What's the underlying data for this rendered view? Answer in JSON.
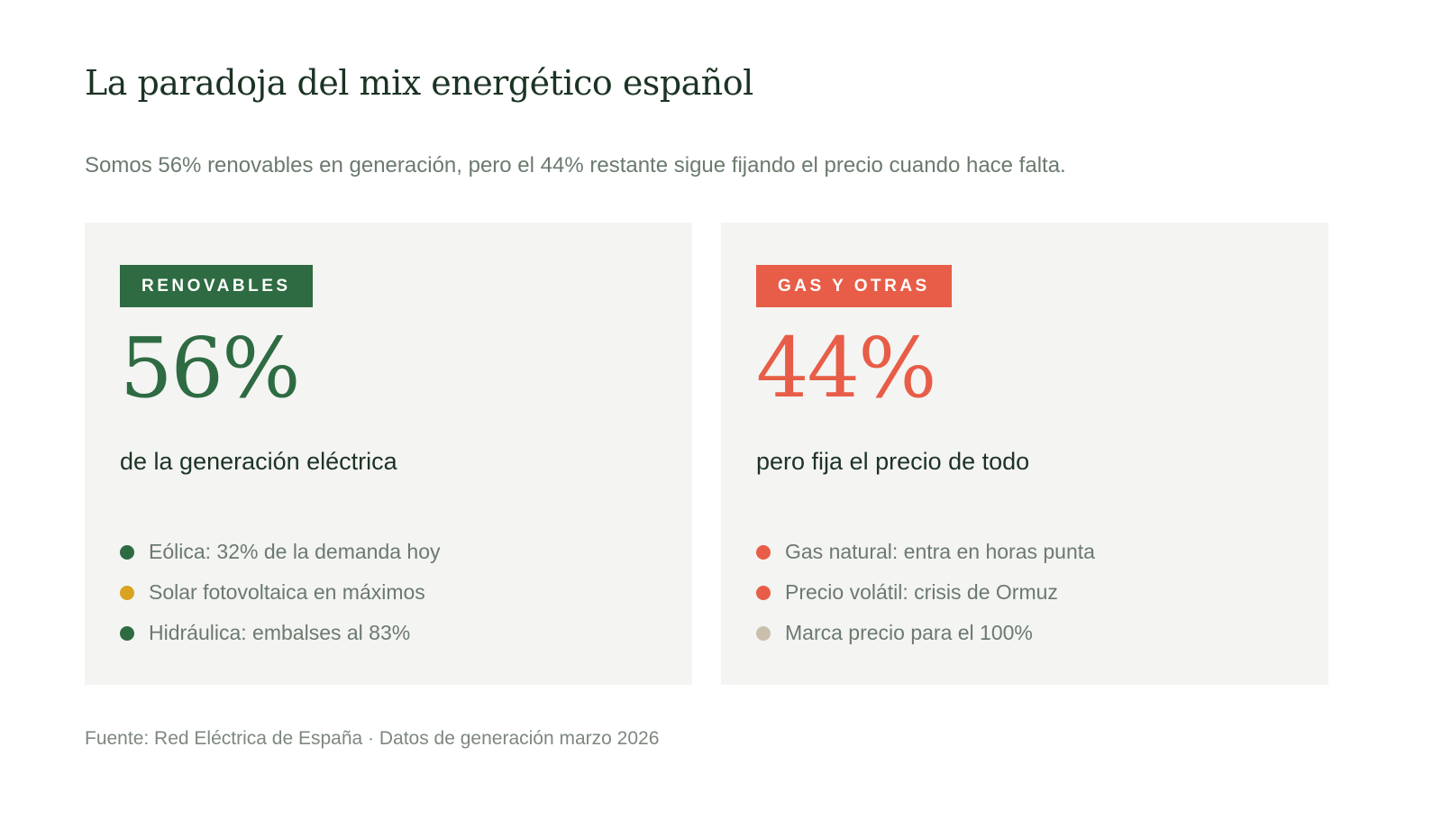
{
  "title": "La paradoja del mix energético español",
  "subtitle": "Somos 56% renovables en generación, pero el 44% restante sigue fijando el precio cuando hace falta.",
  "colors": {
    "green": "#2e6b42",
    "red": "#e85d47",
    "yellow": "#d9a21f",
    "beige": "#c9bfac"
  },
  "cards": [
    {
      "tag": "RENOVABLES",
      "value": "56%",
      "description": "de la generación eléctrica",
      "items": [
        {
          "label": "Eólica: 32% de la demanda hoy",
          "color": "#2e6b42"
        },
        {
          "label": "Solar fotovoltaica en máximos",
          "color": "#d9a21f"
        },
        {
          "label": "Hidráulica: embalses al 83%",
          "color": "#2e6b42"
        }
      ]
    },
    {
      "tag": "GAS Y OTRAS",
      "value": "44%",
      "description": "pero fija el precio de todo",
      "items": [
        {
          "label": "Gas natural: entra en horas punta",
          "color": "#e85d47"
        },
        {
          "label": "Precio volátil: crisis de Ormuz",
          "color": "#e85d47"
        },
        {
          "label": "Marca precio para el 100%",
          "color": "#c9bfac"
        }
      ]
    }
  ],
  "source": "Fuente: Red Eléctrica de España · Datos de generación marzo 2026"
}
